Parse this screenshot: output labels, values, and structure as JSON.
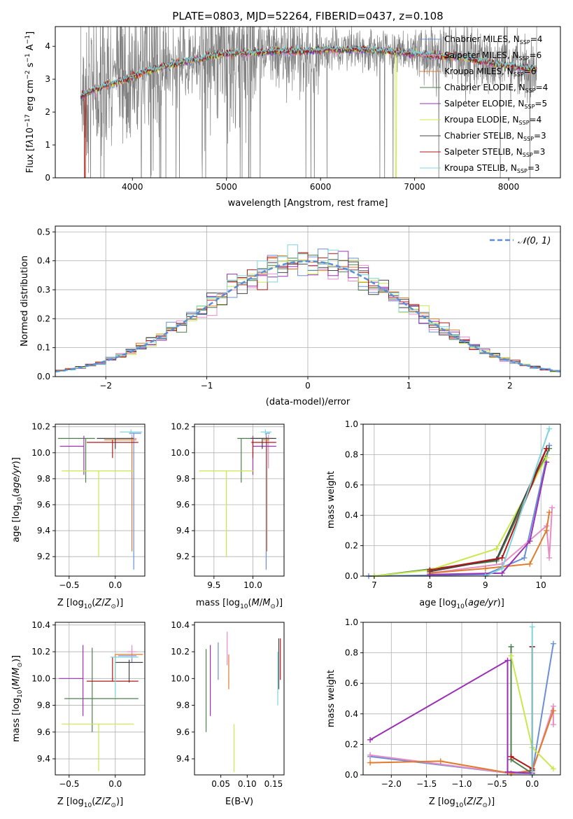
{
  "chart_data": [
    {
      "id": "spectrum",
      "type": "line",
      "title": "PLATE=0803, MJD=52264, FIBERID=0437, z=0.108",
      "xlabel": "wavelength [Angstrom, rest frame]",
      "ylabel": "Flux [f_λ 10^-17 erg cm^-2 s^-1 A^-1]",
      "xlim": [
        3180,
        8550
      ],
      "ylim": [
        0,
        4.6
      ],
      "xticks": [
        4000,
        5000,
        6000,
        7000,
        8000
      ],
      "yticks": [
        0,
        1,
        2,
        3,
        4
      ],
      "grid": false,
      "legend_position": "right",
      "data_color": "#808080",
      "series": [
        {
          "name": "Chabrier MILES",
          "n_ssp": "4",
          "color": "#6a8fd8"
        },
        {
          "name": "Salpeter MILES",
          "n_ssp": "6",
          "color": "#e78cc6"
        },
        {
          "name": "Kroupa MILES",
          "n_ssp": "6",
          "color": "#e07b2c"
        },
        {
          "name": "Chabrier ELODIE",
          "n_ssp": "4",
          "color": "#4f7f4f"
        },
        {
          "name": "Salpeter ELODIE",
          "n_ssp": "5",
          "color": "#9b30b5"
        },
        {
          "name": "Kroupa ELODIE",
          "n_ssp": "4",
          "color": "#c8e84c"
        },
        {
          "name": "Chabrier STELIB",
          "n_ssp": "3",
          "color": "#444444"
        },
        {
          "name": "Salpeter STELIB",
          "n_ssp": "3",
          "color": "#b01818"
        },
        {
          "name": "Kroupa STELIB",
          "n_ssp": "3",
          "color": "#7fd4dc"
        }
      ],
      "continuum": {
        "x": [
          3450,
          3700,
          3900,
          4100,
          4300,
          4500,
          4700,
          4900,
          5100,
          5300,
          5500,
          5700,
          5900,
          6100,
          6300,
          6500,
          6700,
          6900,
          7100,
          7300,
          7500,
          7700,
          7900,
          8100,
          8300
        ],
        "y": [
          2.5,
          2.8,
          2.95,
          3.2,
          3.35,
          3.5,
          3.6,
          3.75,
          3.8,
          3.8,
          3.85,
          3.85,
          3.85,
          3.9,
          3.9,
          3.9,
          3.85,
          3.8,
          3.75,
          3.7,
          3.65,
          3.55,
          3.45,
          3.35,
          3.3
        ]
      }
    },
    {
      "id": "residuals",
      "type": "histogram",
      "xlabel": "(data-model)/error",
      "ylabel": "Normed distribution",
      "xlim": [
        -2.5,
        2.5
      ],
      "ylim": [
        0,
        0.52
      ],
      "xticks": [
        -2,
        -1,
        0,
        1,
        2
      ],
      "yticks": [
        0.0,
        0.1,
        0.2,
        0.3,
        0.4,
        0.5
      ],
      "grid": true,
      "legend": [
        {
          "name": "𝒩(0, 1)",
          "color": "#5b8ed6",
          "style": "dashed"
        }
      ],
      "bin_width": 0.1,
      "hist_colors": [
        "#6a8fd8",
        "#e78cc6",
        "#e07b2c",
        "#4f7f4f",
        "#9b30b5",
        "#c8e84c",
        "#444444",
        "#b01818",
        "#7fd4dc"
      ]
    },
    {
      "id": "age-vs-Z",
      "type": "errorbar",
      "xlabel": "Z [log10(Z/Z_sun)]",
      "ylabel": "age [log10(age/yr)]",
      "xlim": [
        -0.65,
        0.32
      ],
      "ylim": [
        9.05,
        10.22
      ],
      "xticks": [
        -0.5,
        0.0
      ],
      "yticks": [
        9.2,
        9.4,
        9.6,
        9.8,
        10.0,
        10.2
      ],
      "grid": true,
      "points": [
        {
          "x": 0.2,
          "y": 10.15,
          "xerr": [
            0.05,
            0.08
          ],
          "yerr": [
            1.05,
            0.0
          ],
          "color": "#6a8fd8"
        },
        {
          "x": 0.18,
          "y": 10.11,
          "xerr": [
            0.05,
            0.05
          ],
          "yerr": [
            0.23,
            0.03
          ],
          "color": "#e78cc6"
        },
        {
          "x": 0.18,
          "y": 10.1,
          "xerr": [
            0.3,
            0.05
          ],
          "yerr": [
            0.86,
            0.02
          ],
          "color": "#e07b2c"
        },
        {
          "x": -0.32,
          "y": 10.11,
          "xerr": [
            0.3,
            0.1
          ],
          "yerr": [
            0.34,
            0.0
          ],
          "color": "#4f7f4f"
        },
        {
          "x": -0.34,
          "y": 10.05,
          "xerr": [
            0.26,
            0.0
          ],
          "yerr": [
            0.22,
            0.08
          ],
          "color": "#9b30b5"
        },
        {
          "x": -0.18,
          "y": 9.86,
          "xerr": [
            0.4,
            0.38
          ],
          "yerr": [
            0.66,
            0.0
          ],
          "color": "#c8e84c"
        },
        {
          "x": 0.0,
          "y": 10.11,
          "xerr": [
            0.2,
            0.2
          ],
          "yerr": [
            0.08,
            0.0
          ],
          "color": "#444444"
        },
        {
          "x": -0.03,
          "y": 10.08,
          "xerr": [
            0.28,
            0.28
          ],
          "yerr": [
            0.12,
            0.02
          ],
          "color": "#b01818"
        },
        {
          "x": 0.17,
          "y": 10.16,
          "xerr": [
            0.12,
            0.12
          ],
          "yerr": [
            0.02,
            0.02
          ],
          "color": "#7fd4dc"
        }
      ]
    },
    {
      "id": "age-vs-mass",
      "type": "errorbar",
      "xlabel": "mass [log10(M/M_sun)]",
      "ylabel": "",
      "xlim": [
        9.25,
        10.4
      ],
      "ylim": [
        9.05,
        10.22
      ],
      "xticks": [
        9.5,
        10.0
      ],
      "yticks": [
        9.2,
        9.4,
        9.6,
        9.8,
        10.0,
        10.2
      ],
      "grid": true,
      "points": [
        {
          "x": 10.17,
          "y": 10.15,
          "xerr": [
            0.0,
            0.05
          ],
          "yerr": [
            1.05,
            0.0
          ],
          "color": "#6a8fd8"
        },
        {
          "x": 10.2,
          "y": 10.11,
          "xerr": [
            0.05,
            0.05
          ],
          "yerr": [
            0.23,
            0.03
          ],
          "color": "#e78cc6"
        },
        {
          "x": 10.18,
          "y": 10.1,
          "xerr": [
            0.05,
            0.03
          ],
          "yerr": [
            0.86,
            0.02
          ],
          "color": "#e07b2c"
        },
        {
          "x": 9.85,
          "y": 10.11,
          "xerr": [
            0.05,
            0.3
          ],
          "yerr": [
            0.34,
            0.0
          ],
          "color": "#4f7f4f"
        },
        {
          "x": 10.0,
          "y": 10.05,
          "xerr": [
            0.0,
            0.3
          ],
          "yerr": [
            0.22,
            0.08
          ],
          "color": "#9b30b5"
        },
        {
          "x": 9.66,
          "y": 9.86,
          "xerr": [
            0.35,
            0.35
          ],
          "yerr": [
            0.66,
            0.0
          ],
          "color": "#c8e84c"
        },
        {
          "x": 10.12,
          "y": 10.11,
          "xerr": [
            0.15,
            0.18
          ],
          "yerr": [
            0.08,
            0.0
          ],
          "color": "#444444"
        },
        {
          "x": 10.0,
          "y": 10.08,
          "xerr": [
            0.02,
            0.3
          ],
          "yerr": [
            0.12,
            0.02
          ],
          "color": "#b01818"
        },
        {
          "x": 10.16,
          "y": 10.16,
          "xerr": [
            0.06,
            0.08
          ],
          "yerr": [
            0.02,
            0.02
          ],
          "color": "#7fd4dc"
        }
      ]
    },
    {
      "id": "weight-vs-age",
      "type": "line",
      "xlabel": "age [log10(age/yr)]",
      "ylabel": "mass weight",
      "xlim": [
        6.8,
        10.35
      ],
      "ylim": [
        0,
        1.0
      ],
      "xticks": [
        7,
        8,
        9,
        10
      ],
      "yticks": [
        0.0,
        0.2,
        0.4,
        0.6,
        0.8,
        1.0
      ],
      "grid": true,
      "series": [
        {
          "color": "#6a8fd8",
          "x": [
            6.9,
            9.0,
            9.7,
            10.15
          ],
          "y": [
            0.0,
            0.01,
            0.12,
            0.86
          ]
        },
        {
          "color": "#e78cc6",
          "x": [
            8.0,
            9.3,
            10.1,
            10.15,
            10.2
          ],
          "y": [
            0.02,
            0.08,
            0.33,
            0.12,
            0.45
          ]
        },
        {
          "color": "#e07b2c",
          "x": [
            8.0,
            9.0,
            9.8,
            10.1,
            10.15
          ],
          "y": [
            0.02,
            0.05,
            0.08,
            0.3,
            0.42
          ]
        },
        {
          "color": "#4f7f4f",
          "x": [
            7.0,
            9.2,
            10.15
          ],
          "y": [
            0.0,
            0.1,
            0.84
          ]
        },
        {
          "color": "#9b30b5",
          "x": [
            8.0,
            9.3,
            9.8,
            10.1
          ],
          "y": [
            0.01,
            0.02,
            0.23,
            0.75
          ]
        },
        {
          "color": "#c8e84c",
          "x": [
            7.0,
            8.0,
            9.2,
            10.1
          ],
          "y": [
            0.0,
            0.04,
            0.18,
            0.78
          ]
        },
        {
          "color": "#444444",
          "x": [
            8.0,
            9.2,
            10.1
          ],
          "y": [
            0.03,
            0.11,
            0.84
          ]
        },
        {
          "color": "#b01818",
          "x": [
            8.0,
            9.3,
            10.1
          ],
          "y": [
            0.04,
            0.12,
            0.84
          ]
        },
        {
          "color": "#7fd4dc",
          "x": [
            9.0,
            9.3,
            10.15
          ],
          "y": [
            0.0,
            0.05,
            0.97
          ]
        }
      ]
    },
    {
      "id": "mass-vs-Z",
      "type": "errorbar",
      "xlabel": "Z [log10(Z/Z_sun)]",
      "ylabel": "mass [log10(M/M_sun)]",
      "xlim": [
        -0.65,
        0.32
      ],
      "ylim": [
        9.28,
        10.42
      ],
      "xticks": [
        -0.5,
        0.0
      ],
      "yticks": [
        9.4,
        9.6,
        9.8,
        10.0,
        10.2,
        10.4
      ],
      "grid": true,
      "points": [
        {
          "x": 0.18,
          "y": 10.17,
          "xerr": [
            0.15,
            0.05
          ],
          "yerr": [
            0.05,
            0.05
          ],
          "color": "#6a8fd8"
        },
        {
          "x": 0.18,
          "y": 10.2,
          "xerr": [
            0.05,
            0.05
          ],
          "yerr": [
            0.05,
            0.05
          ],
          "color": "#e78cc6"
        },
        {
          "x": 0.0,
          "y": 10.18,
          "xerr": [
            0.0,
            0.3
          ],
          "yerr": [
            0.18,
            0.0
          ],
          "color": "#e07b2c"
        },
        {
          "x": -0.25,
          "y": 9.85,
          "xerr": [
            0.3,
            0.5
          ],
          "yerr": [
            0.25,
            0.38
          ],
          "color": "#4f7f4f"
        },
        {
          "x": -0.35,
          "y": 10.0,
          "xerr": [
            0.26,
            0.0
          ],
          "yerr": [
            0.28,
            0.25
          ],
          "color": "#9b30b5"
        },
        {
          "x": -0.18,
          "y": 9.66,
          "xerr": [
            0.4,
            0.38
          ],
          "yerr": [
            0.35,
            0.0
          ],
          "color": "#c8e84c"
        },
        {
          "x": 0.15,
          "y": 10.12,
          "xerr": [
            0.15,
            0.15
          ],
          "yerr": [
            0.15,
            0.02
          ],
          "color": "#444444"
        },
        {
          "x": -0.03,
          "y": 9.98,
          "xerr": [
            0.28,
            0.28
          ],
          "yerr": [
            0.0,
            0.18
          ],
          "color": "#b01818"
        },
        {
          "x": 0.0,
          "y": 10.16,
          "xerr": [
            0.05,
            0.25
          ],
          "yerr": [
            0.3,
            0.0
          ],
          "color": "#7fd4dc"
        }
      ]
    },
    {
      "id": "mass-vs-ebv",
      "type": "errorbar",
      "xlabel": "E(B-V)",
      "ylabel": "",
      "xlim": [
        0.0,
        0.17
      ],
      "ylim": [
        9.28,
        10.42
      ],
      "xticks": [
        0.05,
        0.1,
        0.15
      ],
      "yticks": [
        9.4,
        9.6,
        9.8,
        10.0,
        10.2,
        10.4
      ],
      "grid": false,
      "points": [
        {
          "x": 0.045,
          "y": 10.17,
          "xerr": [
            0.0,
            0.0
          ],
          "yerr": [
            0.18,
            0.1
          ],
          "color": "#6a8fd8"
        },
        {
          "x": 0.062,
          "y": 10.2,
          "xerr": [
            0.0,
            0.0
          ],
          "yerr": [
            0.1,
            0.15
          ],
          "color": "#e78cc6"
        },
        {
          "x": 0.065,
          "y": 10.18,
          "xerr": [
            0.0,
            0.0
          ],
          "yerr": [
            0.26,
            0.0
          ],
          "color": "#e07b2c"
        },
        {
          "x": 0.022,
          "y": 9.85,
          "xerr": [
            0.0,
            0.0
          ],
          "yerr": [
            0.25,
            0.37
          ],
          "color": "#4f7f4f"
        },
        {
          "x": 0.03,
          "y": 10.0,
          "xerr": [
            0.0,
            0.0
          ],
          "yerr": [
            0.28,
            0.25
          ],
          "color": "#9b30b5"
        },
        {
          "x": 0.075,
          "y": 9.66,
          "xerr": [
            0.0,
            0.0
          ],
          "yerr": [
            0.36,
            0.0
          ],
          "color": "#c8e84c"
        },
        {
          "x": 0.16,
          "y": 10.12,
          "xerr": [
            0.0,
            0.0
          ],
          "yerr": [
            0.2,
            0.18
          ],
          "color": "#444444"
        },
        {
          "x": 0.163,
          "y": 10.2,
          "xerr": [
            0.0,
            0.0
          ],
          "yerr": [
            0.21,
            0.1
          ],
          "color": "#b01818"
        },
        {
          "x": 0.158,
          "y": 10.0,
          "xerr": [
            0.0,
            0.0
          ],
          "yerr": [
            0.2,
            0.2
          ],
          "color": "#7fd4dc"
        }
      ]
    },
    {
      "id": "weight-vs-Z",
      "type": "line",
      "xlabel": "Z [log10(Z/Z_sun)]",
      "ylabel": "mass weight",
      "xlim": [
        -2.4,
        0.4
      ],
      "ylim": [
        0,
        1.0
      ],
      "xticks": [
        -2.0,
        -1.5,
        -1.0,
        -0.5,
        0.0
      ],
      "yticks": [
        0.0,
        0.2,
        0.4,
        0.6,
        0.8,
        1.0
      ],
      "grid": true,
      "series": [
        {
          "color": "#6a8fd8",
          "x": [
            -2.3,
            -0.3,
            0.0,
            0.3
          ],
          "y": [
            0.12,
            0.01,
            0.01,
            0.86
          ]
        },
        {
          "color": "#e78cc6",
          "x": [
            -2.3,
            -0.3,
            0.0,
            0.3,
            0.3
          ],
          "y": [
            0.13,
            0.01,
            0.02,
            0.45,
            0.33
          ]
        },
        {
          "color": "#e07b2c",
          "x": [
            -2.3,
            -1.3,
            -0.3,
            0.0,
            0.3
          ],
          "y": [
            0.08,
            0.09,
            0.01,
            0.03,
            0.42
          ]
        },
        {
          "color": "#4f7f4f",
          "x": [
            -0.3,
            -0.3,
            0.0
          ],
          "y": [
            0.84,
            0.1,
            0.01
          ]
        },
        {
          "color": "#9b30b5",
          "x": [
            -2.3,
            -0.35,
            -0.35,
            0.0
          ],
          "y": [
            0.23,
            0.75,
            0.02,
            0.01
          ]
        },
        {
          "color": "#c8e84c",
          "x": [
            -0.3,
            0.0,
            0.3
          ],
          "y": [
            0.78,
            0.18,
            0.04
          ]
        },
        {
          "color": "#444444",
          "x": [
            0.0,
            0.0
          ],
          "y": [
            0.84,
            0.03
          ]
        },
        {
          "color": "#b01818",
          "x": [
            -0.3,
            0.0,
            0.0
          ],
          "y": [
            0.12,
            0.04,
            0.84
          ]
        },
        {
          "color": "#7fd4dc",
          "x": [
            0.0,
            0.0
          ],
          "y": [
            0.0,
            0.97
          ]
        }
      ]
    }
  ]
}
